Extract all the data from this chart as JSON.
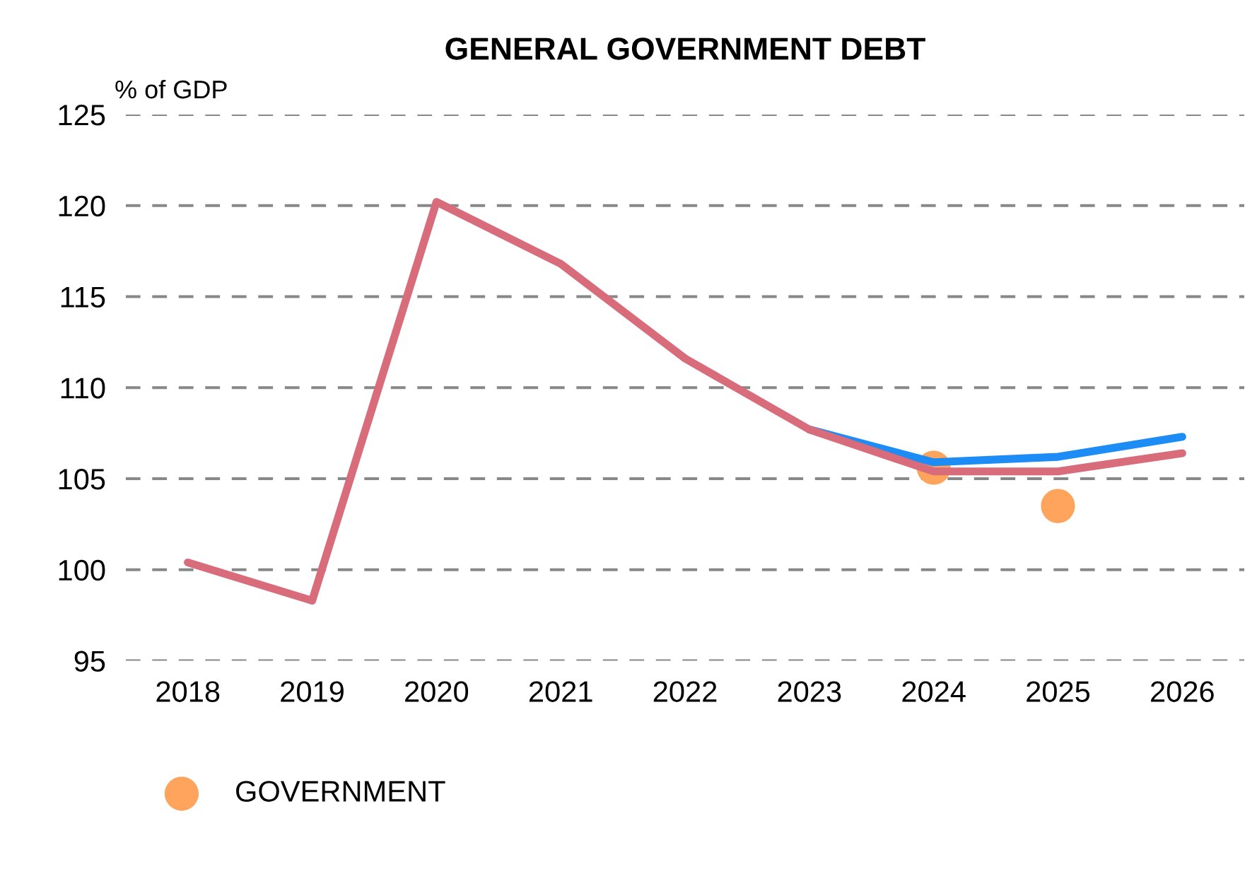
{
  "chart_data": {
    "type": "line",
    "title": "GENERAL GOVERNMENT DEBT",
    "ylabel": "% of GDP",
    "categories": [
      "2018",
      "2019",
      "2020",
      "2021",
      "2022",
      "2023",
      "2024",
      "2025",
      "2026"
    ],
    "series": [
      {
        "color": "#1e8cf5",
        "values": [
          null,
          null,
          null,
          null,
          null,
          107.7,
          105.9,
          106.2,
          107.3
        ]
      },
      {
        "color": "#d86c7a",
        "values": [
          100.4,
          98.3,
          120.2,
          116.8,
          111.6,
          107.7,
          105.4,
          105.4,
          106.4
        ]
      },
      {
        "name": "GOVERNMENT",
        "type": "scatter",
        "color": "#ffa45c",
        "values": [
          null,
          null,
          null,
          null,
          null,
          null,
          105.6,
          103.5,
          null
        ]
      }
    ],
    "ylim": [
      95,
      125
    ],
    "yticks": [
      95,
      100,
      105,
      110,
      115,
      120,
      125
    ],
    "grid": "y",
    "legend": "bottom left"
  }
}
